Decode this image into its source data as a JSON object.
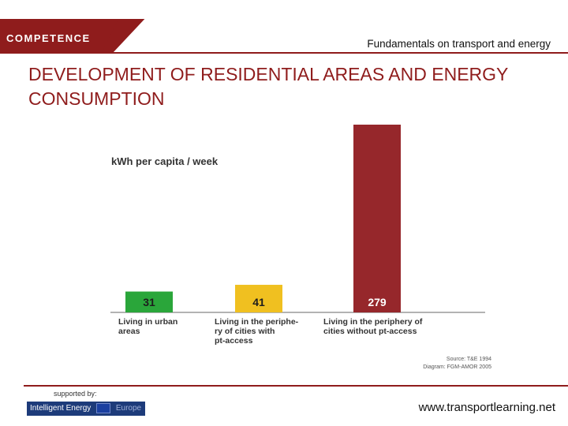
{
  "header": {
    "logo": "COMPETENCE",
    "subtitle": "Fundamentals on transport and energy"
  },
  "page_title": "DEVELOPMENT OF RESIDENTIAL AREAS AND ENERGY CONSUMPTION",
  "colors": {
    "brand": "#8f1c1c",
    "bar_urban": "#2aa63a",
    "bar_pt_access": "#f0c020",
    "bar_no_pt_access": "#96272b",
    "label_text": "#333333"
  },
  "chart_data": {
    "type": "bar",
    "ylabel": "kWh per capita / week",
    "categories": [
      [
        "Living in urban",
        "areas"
      ],
      [
        "Living in the periphe-",
        "ry of cities with",
        "pt-access"
      ],
      [
        "Living in the periphery of",
        "cities without pt-access"
      ]
    ],
    "values": [
      31,
      41,
      279
    ],
    "value_labels": [
      "31",
      "41",
      "279"
    ],
    "ylim": [
      0,
      300
    ],
    "grid": false,
    "source": [
      "Source: T&E 1994",
      "Diagram: FGM-AMOR 2005"
    ]
  },
  "footer": {
    "supported_by": "supported by:",
    "logo_text": "Intelligent Energy",
    "logo_region": "Europe",
    "website": "www.transportlearning.net"
  }
}
